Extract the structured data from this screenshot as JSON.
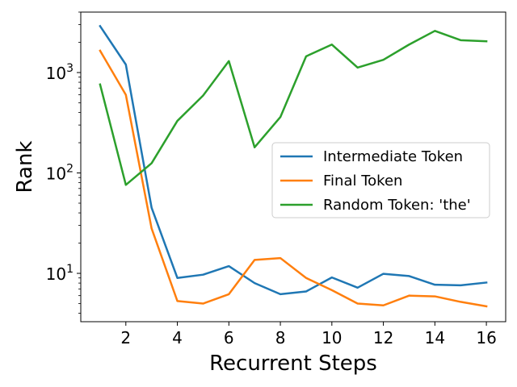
{
  "chart_data": {
    "type": "line",
    "title": "",
    "xlabel": "Recurrent Steps",
    "ylabel": "Rank",
    "yscale": "log",
    "xlim": [
      0.25,
      16.75
    ],
    "ylim": [
      3.3,
      4000
    ],
    "x": [
      1,
      2,
      3,
      4,
      5,
      6,
      7,
      8,
      9,
      10,
      11,
      12,
      13,
      14,
      15,
      16
    ],
    "xticks": [
      2,
      4,
      6,
      8,
      10,
      12,
      14,
      16
    ],
    "xtick_labels": [
      "2",
      "4",
      "6",
      "8",
      "10",
      "12",
      "14",
      "16"
    ],
    "yticks": [
      10,
      100,
      1000
    ],
    "ytick_labels": [
      {
        "base": "10",
        "exp": "1"
      },
      {
        "base": "10",
        "exp": "2"
      },
      {
        "base": "10",
        "exp": "3"
      }
    ],
    "grid": false,
    "legend_position": "center-right",
    "series": [
      {
        "name": "Intermediate Token",
        "color": "#1f77b4",
        "values": [
          2900,
          1200,
          45,
          9,
          9.7,
          11.8,
          8,
          6.2,
          6.6,
          9.1,
          7.2,
          9.9,
          9.4,
          7.7,
          7.6,
          8.1
        ]
      },
      {
        "name": "Final Token",
        "color": "#ff7f0e",
        "values": [
          1650,
          600,
          28,
          5.3,
          5,
          6.2,
          13.6,
          14.2,
          9,
          6.8,
          5,
          4.8,
          6,
          5.9,
          5.2,
          4.7
        ]
      },
      {
        "name": "Random Token: 'the'",
        "color": "#2ca02c",
        "values": [
          760,
          76,
          125,
          330,
          590,
          1300,
          180,
          360,
          1450,
          1900,
          1120,
          1340,
          1900,
          2600,
          2100,
          2050
        ]
      }
    ]
  }
}
